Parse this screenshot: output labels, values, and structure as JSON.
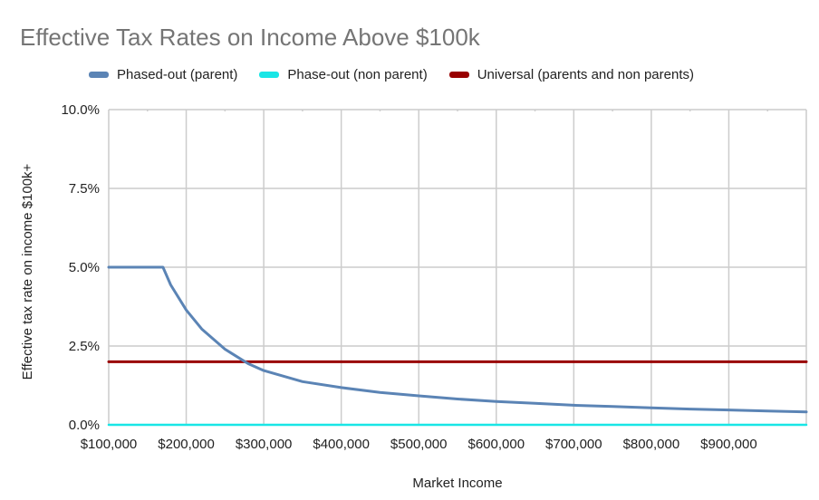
{
  "chart_data": {
    "type": "line",
    "title": "Effective Tax Rates on Income Above $100k",
    "xlabel": "Market Income",
    "ylabel": "Effective tax rate on income $100k+",
    "xlim": [
      100000,
      1000000
    ],
    "ylim": [
      0,
      0.1
    ],
    "x_ticks": [
      100000,
      200000,
      300000,
      400000,
      500000,
      600000,
      700000,
      800000,
      900000
    ],
    "x_tick_labels": [
      "$100,000",
      "$200,000",
      "$300,000",
      "$400,000",
      "$500,000",
      "$600,000",
      "$700,000",
      "$800,000",
      "$900,000"
    ],
    "y_ticks": [
      0,
      0.025,
      0.05,
      0.075,
      0.1
    ],
    "y_tick_labels": [
      "0.0%",
      "2.5%",
      "5.0%",
      "7.5%",
      "10.0%"
    ],
    "grid": true,
    "legend_position": "top",
    "series": [
      {
        "name": "Phased-out (parent)",
        "color": "#5b84b5",
        "x": [
          100000,
          170000,
          180000,
          200000,
          220000,
          250000,
          280000,
          300000,
          350000,
          400000,
          450000,
          500000,
          550000,
          600000,
          650000,
          700000,
          750000,
          800000,
          850000,
          900000,
          950000,
          1000000
        ],
        "y": [
          0.05,
          0.05,
          0.0444,
          0.0364,
          0.0304,
          0.024,
          0.0194,
          0.0172,
          0.0137,
          0.0118,
          0.0103,
          0.0092,
          0.0082,
          0.0074,
          0.0068,
          0.0062,
          0.0058,
          0.0054,
          0.005,
          0.0047,
          0.0044,
          0.0041
        ]
      },
      {
        "name": "Phase-out (non parent)",
        "color": "#19e6e6",
        "x": [
          100000,
          1000000
        ],
        "y": [
          0,
          0
        ]
      },
      {
        "name": "Universal (parents and non parents)",
        "color": "#990000",
        "x": [
          100000,
          1000000
        ],
        "y": [
          0.02,
          0.02
        ]
      }
    ]
  }
}
